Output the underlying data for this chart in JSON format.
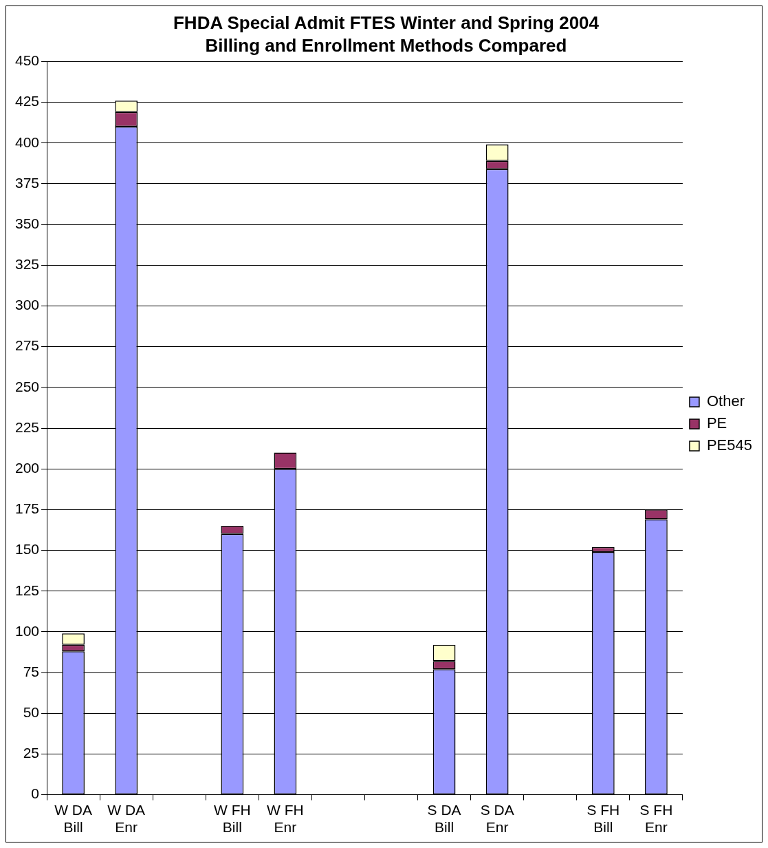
{
  "chart_data": {
    "type": "bar",
    "title": "FHDA Special Admit FTES Winter and Spring 2004",
    "subtitle": "Billing and Enrollment Methods Compared",
    "stacked": true,
    "categories": [
      "W DA\nBill",
      "W DA\nEnr",
      null,
      "W FH\nBill",
      "W FH\nEnr",
      null,
      null,
      "S DA\nBill",
      "S DA\nEnr",
      null,
      "S FH\nBill",
      "S FH\nEnr"
    ],
    "series": [
      {
        "name": "Other",
        "color": "#9999ff",
        "values": [
          88,
          410,
          null,
          160,
          200,
          null,
          null,
          77,
          384,
          null,
          149,
          169
        ]
      },
      {
        "name": "PE",
        "color": "#993366",
        "values": [
          4,
          9,
          null,
          5,
          10,
          null,
          null,
          5,
          5,
          null,
          3,
          6
        ]
      },
      {
        "name": "PE545",
        "color": "#ffffcc",
        "values": [
          7,
          7,
          null,
          null,
          null,
          null,
          null,
          10,
          10,
          null,
          null,
          null
        ]
      }
    ],
    "ylim": [
      0,
      450
    ],
    "yticks": [
      0,
      25,
      50,
      75,
      100,
      125,
      150,
      175,
      200,
      225,
      250,
      275,
      300,
      325,
      350,
      375,
      400,
      425,
      450
    ],
    "grid": "y",
    "legend": "right"
  }
}
